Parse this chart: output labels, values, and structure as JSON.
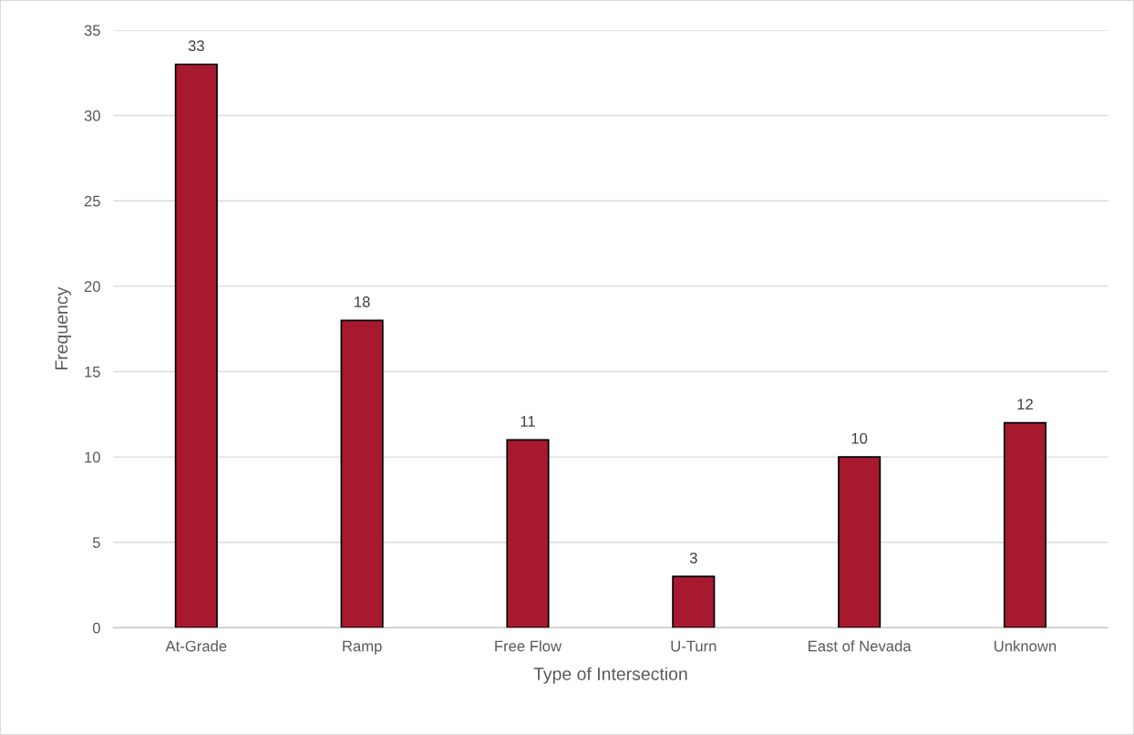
{
  "chart_data": {
    "type": "bar",
    "xlabel": "Type of Intersection",
    "ylabel": "Frequency",
    "categories": [
      "At-Grade",
      "Ramp",
      "Free Flow",
      "U-Turn",
      "East of Nevada",
      "Unknown"
    ],
    "values": [
      33,
      18,
      11,
      3,
      10,
      12
    ],
    "color": "#a6192e",
    "ylim": [
      0,
      35
    ],
    "yticks": [
      0,
      5,
      10,
      15,
      20,
      25,
      30,
      35
    ],
    "grid": "y",
    "data_labels": true
  }
}
